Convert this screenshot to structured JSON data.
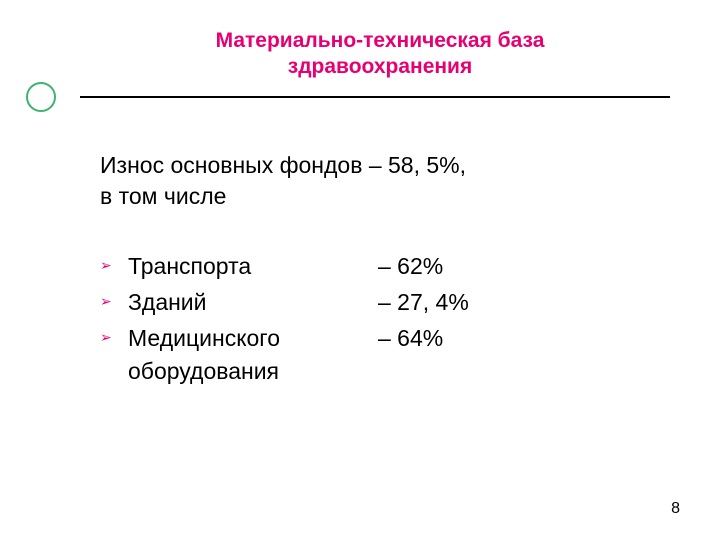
{
  "colors": {
    "title_color": "#e60073",
    "text_color": "#000000",
    "bullet_color": "#e60073",
    "circle_border": "#3cb371",
    "background": "#ffffff"
  },
  "title": {
    "line1": "Материально-техническая база",
    "line2": "здравоохранения"
  },
  "intro": {
    "line1": "Износ основных фондов – 58, 5%,",
    "line2": "в том числе"
  },
  "items": [
    {
      "label": "Транспорта",
      "value": "– 62%"
    },
    {
      "label": "Зданий",
      "value": "– 27, 4%"
    },
    {
      "label": "Медицинского оборудования",
      "value": "– 64%"
    }
  ],
  "page_number": "8",
  "fonts": {
    "title_size_pt": 21,
    "body_size_pt": 23,
    "bullet_glyph": "➢"
  }
}
